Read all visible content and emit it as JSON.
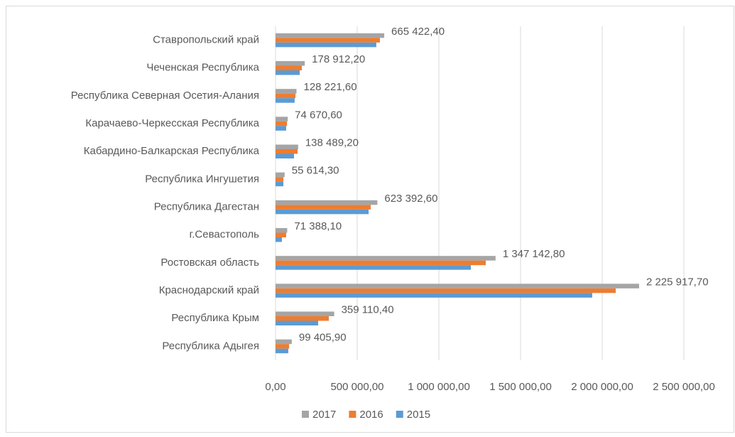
{
  "chart_data": {
    "type": "hbar",
    "categories": [
      "Ставропольский край",
      "Чеченская  Республика",
      "Республика Северная  Осетия-Алания",
      "Карачаево-Черкесская Республика",
      "Кабардино-Балкарская Республика",
      "Республика Ингушетия",
      "Республика Дагестан",
      "г.Севастополь",
      "Ростовская область",
      "Краснодарский край",
      "Республика Крым",
      "Республика Адыгея"
    ],
    "series": [
      {
        "name": "2017",
        "color": "#a5a5a5",
        "values": [
          665422.4,
          178912.2,
          128221.6,
          74670.6,
          138489.2,
          55614.3,
          623392.6,
          71388.1,
          1347142.8,
          2225917.7,
          359110.4,
          99405.9
        ],
        "value_labels": [
          "665 422,40",
          "178 912,20",
          "128 221,60",
          "74 670,60",
          "138 489,20",
          "55 614,30",
          "623 392,60",
          "71 388,10",
          "1 347 142,80",
          "2 225 917,70",
          "359 110,40",
          "99 405,90"
        ]
      },
      {
        "name": "2016",
        "color": "#ed7d31",
        "values": [
          639000,
          161000,
          122000,
          70000,
          135000,
          48000,
          583000,
          65000,
          1287000,
          2083000,
          326000,
          83000
        ]
      },
      {
        "name": "2015",
        "color": "#5b9bd5",
        "values": [
          617000,
          148000,
          117000,
          65000,
          113000,
          48000,
          570000,
          39000,
          1196000,
          1939000,
          261000,
          78000
        ]
      }
    ],
    "xlim": [
      0,
      2500000
    ],
    "xticks": [
      {
        "value": 0,
        "label": "0,00"
      },
      {
        "value": 500000,
        "label": "500 000,00"
      },
      {
        "value": 1000000,
        "label": "1 000 000,00"
      },
      {
        "value": 1500000,
        "label": "1 500 000,00"
      },
      {
        "value": 2000000,
        "label": "2 000 000,00"
      },
      {
        "value": 2500000,
        "label": "2 500 000,00"
      }
    ],
    "grid": true,
    "legend": "bottom"
  }
}
